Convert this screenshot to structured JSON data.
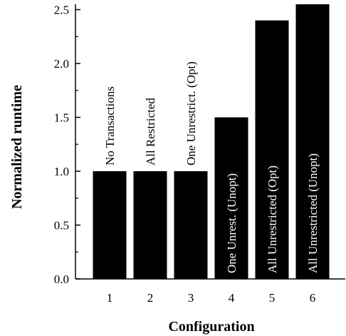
{
  "chart_data": {
    "type": "bar",
    "xlabel": "Configuration",
    "ylabel": "Normalized runtime",
    "ylim": [
      0,
      2.55
    ],
    "yticks": [
      "0.0",
      "0.5",
      "1.0",
      "1.5",
      "2.0",
      "2.5"
    ],
    "grid": false,
    "categories": [
      "1",
      "2",
      "3",
      "4",
      "5",
      "6"
    ],
    "values": [
      1.0,
      1.0,
      1.0,
      1.5,
      2.4,
      2.55
    ],
    "bar_labels": [
      "No Transactions",
      "All Restricted",
      "One Unrestrict. (Opt)",
      "One Unrest. (Unopt)",
      "All Unrestricted (Opt)",
      "All Unrestricted (Unopt)"
    ],
    "bar_color": "#000000",
    "label_inside_color": "#ffffff",
    "label_outside_color": "#000000"
  }
}
